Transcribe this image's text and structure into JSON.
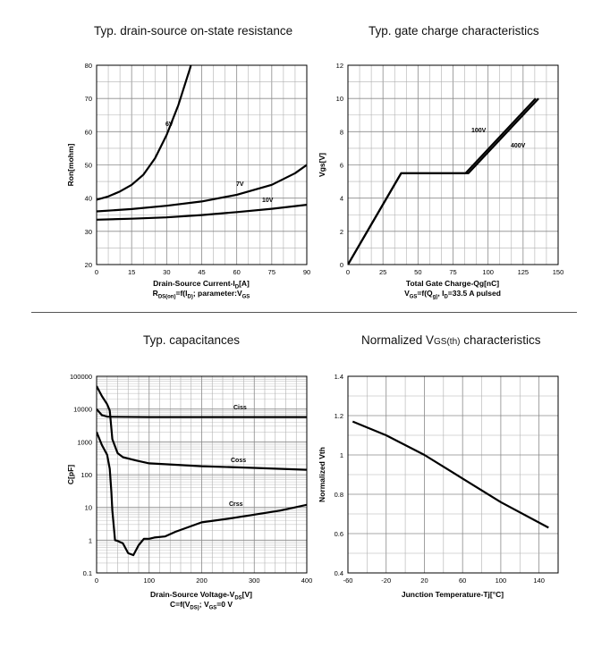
{
  "panels": {
    "ron": {
      "title": "Typ. drain-source on-state resistance",
      "xlabel": "Drain-Source Current-I_D[A]",
      "condition": "R_DS(on)=f(I_D); parameter:V_GS"
    },
    "qg": {
      "title": "Typ. gate charge characteristics",
      "xlabel": "Total Gate Charge-Qg[nC]",
      "condition": "V_GS=f(Q_g), I_D=33.5 A  pulsed"
    },
    "cap": {
      "title": "Typ. capacitances",
      "xlabel": "Drain-Source Voltage-V_DS[V]",
      "condition": "C=f(V_DS); V_GS=0 V"
    },
    "vth": {
      "title_main": "Normalized V",
      "title_sub": "GS(th)",
      "title_tail": " characteristics",
      "xlabel": "Junction Temperature-Tj[°C]"
    }
  },
  "chart_data": [
    {
      "type": "line",
      "title": "Typ. drain-source on-state resistance",
      "xlabel": "Drain-Source Current-I_D[A]",
      "ylabel": "Ron[mohm]",
      "xlim": [
        0,
        90
      ],
      "ylim": [
        20,
        80
      ],
      "xticks": [
        0,
        15,
        30,
        45,
        60,
        75,
        90
      ],
      "yticks": [
        20,
        30,
        40,
        50,
        60,
        70,
        80
      ],
      "grid": true,
      "series": [
        {
          "name": "6V",
          "x": [
            0,
            5,
            10,
            15,
            20,
            25,
            30,
            35,
            40,
            45
          ],
          "y": [
            39.5,
            40.5,
            42,
            44,
            47,
            52,
            59,
            68,
            79,
            92
          ]
        },
        {
          "name": "7V",
          "x": [
            0,
            15,
            30,
            45,
            60,
            75,
            85,
            90
          ],
          "y": [
            36,
            36.7,
            37.7,
            39,
            41,
            44,
            47.5,
            50
          ]
        },
        {
          "name": "10V",
          "x": [
            0,
            15,
            30,
            45,
            60,
            75,
            90
          ],
          "y": [
            33.5,
            33.8,
            34.2,
            34.9,
            35.8,
            36.8,
            38
          ]
        }
      ]
    },
    {
      "type": "line",
      "title": "Typ. gate charge characteristics",
      "xlabel": "Total Gate Charge-Qg[nC]",
      "ylabel": "Vgs[V]",
      "xlim": [
        0,
        150
      ],
      "ylim": [
        0,
        12
      ],
      "xticks": [
        0,
        25,
        50,
        75,
        100,
        125,
        150
      ],
      "yticks": [
        0,
        2,
        4,
        6,
        8,
        10,
        12
      ],
      "grid": true,
      "series": [
        {
          "name": "100V",
          "x": [
            0,
            38,
            84,
            134
          ],
          "y": [
            0,
            5.5,
            5.5,
            10
          ]
        },
        {
          "name": "400V",
          "x": [
            0,
            38,
            86,
            136
          ],
          "y": [
            0,
            5.5,
            5.5,
            10
          ]
        }
      ]
    },
    {
      "type": "line",
      "title": "Typ. capacitances",
      "xlabel": "Drain-Source Voltage-V_DS[V]",
      "ylabel": "C[pF]",
      "xlim": [
        0,
        400
      ],
      "ylim": [
        0.1,
        100000
      ],
      "yscale": "log",
      "xticks": [
        0,
        100,
        200,
        300,
        400
      ],
      "yticks": [
        0.1,
        1,
        10,
        100,
        1000,
        10000,
        100000
      ],
      "grid": true,
      "series": [
        {
          "name": "Ciss",
          "x": [
            0,
            10,
            20,
            30,
            100,
            200,
            300,
            400
          ],
          "y": [
            10000,
            6500,
            5900,
            5800,
            5700,
            5700,
            5700,
            5700
          ]
        },
        {
          "name": "Coss",
          "x": [
            0,
            10,
            20,
            25,
            30,
            40,
            50,
            75,
            100,
            200,
            300,
            400
          ],
          "y": [
            50000,
            25000,
            14000,
            9000,
            1200,
            450,
            340,
            270,
            220,
            180,
            160,
            140
          ]
        },
        {
          "name": "Crss",
          "x": [
            0,
            10,
            20,
            25,
            28,
            30,
            35,
            40,
            50,
            60,
            70,
            80,
            90,
            100,
            110,
            130,
            150,
            200,
            250,
            300,
            350,
            400
          ],
          "y": [
            2000,
            800,
            400,
            150,
            30,
            8,
            1,
            0.95,
            0.8,
            0.4,
            0.35,
            0.7,
            1.1,
            1.1,
            1.2,
            1.3,
            1.8,
            3.5,
            4.5,
            6,
            8,
            12
          ]
        }
      ]
    },
    {
      "type": "line",
      "title": "Normalized VGS(th) characteristics",
      "xlabel": "Junction Temperature-Tj[°C]",
      "ylabel": "Normalized Vth",
      "xlim": [
        -60,
        160
      ],
      "ylim": [
        0.4,
        1.4
      ],
      "xticks": [
        -60,
        -20,
        20,
        60,
        100,
        140
      ],
      "yticks": [
        0.4,
        0.6,
        0.8,
        1.0,
        1.2,
        1.4
      ],
      "ytick_labels": [
        "0.4",
        "0.6",
        "0.8",
        "1",
        "1.2",
        "1.4"
      ],
      "grid": true,
      "series": [
        {
          "name": "",
          "x": [
            -55,
            -20,
            20,
            60,
            100,
            150
          ],
          "y": [
            1.17,
            1.1,
            1.0,
            0.88,
            0.76,
            0.63
          ]
        }
      ]
    }
  ]
}
